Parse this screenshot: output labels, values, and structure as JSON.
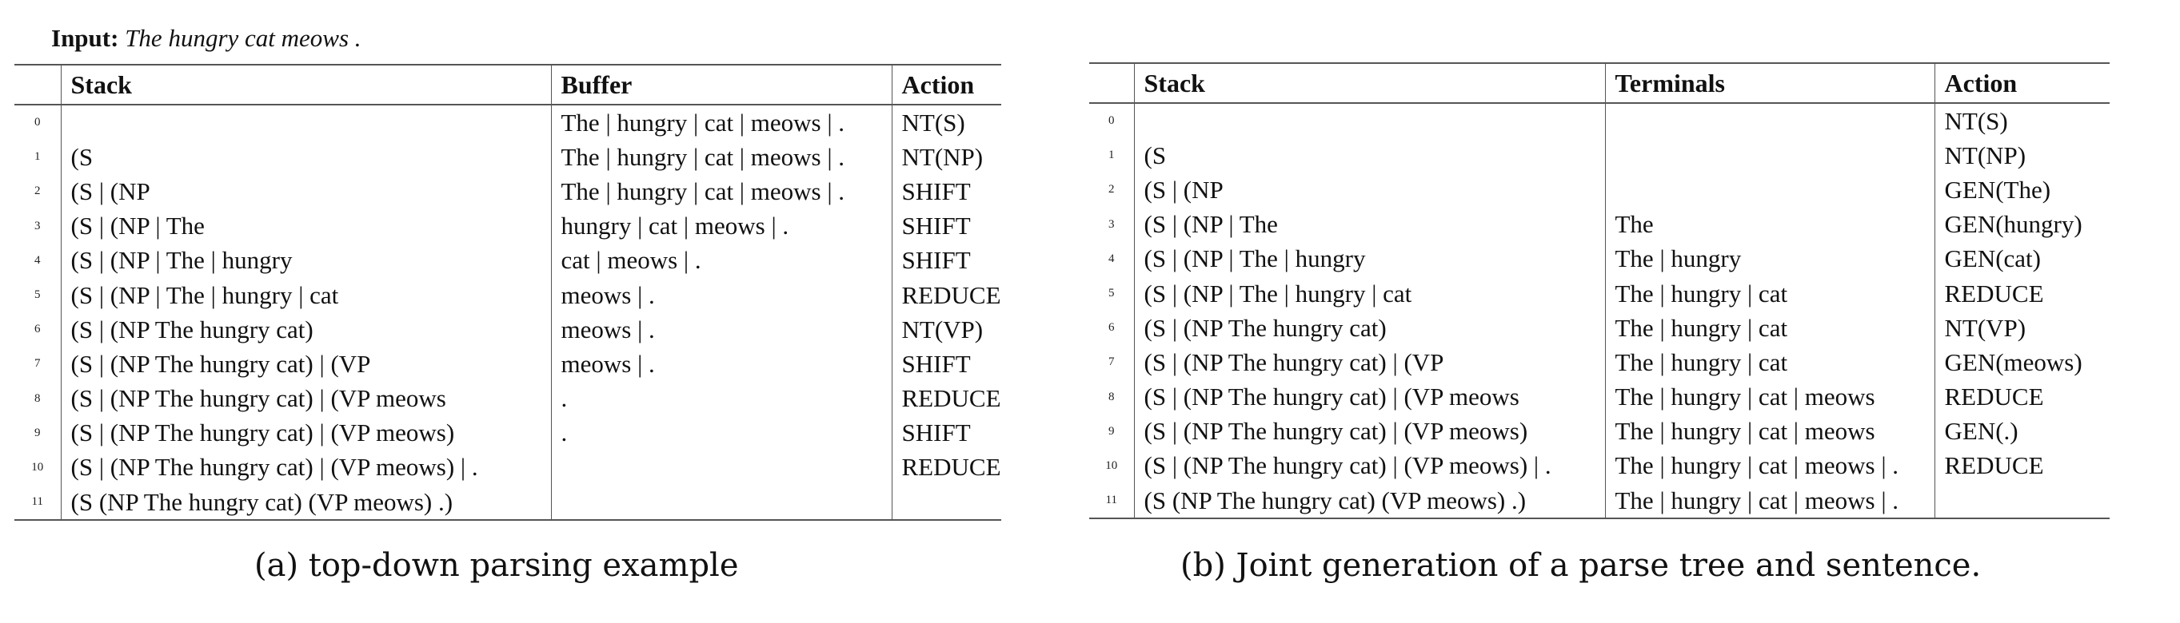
{
  "input_line": {
    "label": "Input:",
    "sentence": "The hungry cat meows ."
  },
  "table_a": {
    "headers": [
      "",
      "Stack",
      "Buffer",
      "Action"
    ],
    "rows": [
      {
        "num": "0",
        "stack": "",
        "buffer": "The | hungry | cat | meows | .",
        "action": "NT(S)"
      },
      {
        "num": "1",
        "stack": "(S",
        "buffer": "The | hungry | cat | meows | .",
        "action": "NT(NP)"
      },
      {
        "num": "2",
        "stack": "(S | (NP",
        "buffer": "The | hungry | cat | meows | .",
        "action": "SHIFT"
      },
      {
        "num": "3",
        "stack": "(S | (NP | The",
        "buffer": "hungry | cat | meows | .",
        "action": "SHIFT"
      },
      {
        "num": "4",
        "stack": "(S | (NP | The | hungry",
        "buffer": "cat | meows | .",
        "action": "SHIFT"
      },
      {
        "num": "5",
        "stack": "(S | (NP | The | hungry | cat",
        "buffer": "meows | .",
        "action": "REDUCE"
      },
      {
        "num": "6",
        "stack": "(S | (NP The hungry cat)",
        "buffer": "meows | .",
        "action": "NT(VP)"
      },
      {
        "num": "7",
        "stack": "(S | (NP The hungry cat) | (VP",
        "buffer": "meows | .",
        "action": "SHIFT"
      },
      {
        "num": "8",
        "stack": "(S | (NP The hungry cat) | (VP meows",
        "buffer": ".",
        "action": "REDUCE"
      },
      {
        "num": "9",
        "stack": "(S | (NP The hungry cat) | (VP meows)",
        "buffer": ".",
        "action": "SHIFT"
      },
      {
        "num": "10",
        "stack": "(S | (NP The hungry cat) | (VP meows) | .",
        "buffer": "",
        "action": "REDUCE"
      },
      {
        "num": "11",
        "stack": "(S (NP The hungry cat) (VP meows) .)",
        "buffer": "",
        "action": ""
      }
    ]
  },
  "table_b": {
    "headers": [
      "",
      "Stack",
      "Terminals",
      "Action"
    ],
    "rows": [
      {
        "num": "0",
        "stack": "",
        "terminals": "",
        "action": "NT(S)"
      },
      {
        "num": "1",
        "stack": "(S",
        "terminals": "",
        "action": "NT(NP)"
      },
      {
        "num": "2",
        "stack": "(S | (NP",
        "terminals": "",
        "action": "GEN(The)"
      },
      {
        "num": "3",
        "stack": "(S | (NP | The",
        "terminals": "The",
        "action": "GEN(hungry)"
      },
      {
        "num": "4",
        "stack": "(S | (NP | The | hungry",
        "terminals": "The | hungry",
        "action": "GEN(cat)"
      },
      {
        "num": "5",
        "stack": "(S | (NP | The | hungry | cat",
        "terminals": "The | hungry | cat",
        "action": "REDUCE"
      },
      {
        "num": "6",
        "stack": "(S | (NP The hungry cat)",
        "terminals": "The | hungry | cat",
        "action": "NT(VP)"
      },
      {
        "num": "7",
        "stack": "(S | (NP The hungry cat) | (VP",
        "terminals": "The | hungry | cat",
        "action": "GEN(meows)"
      },
      {
        "num": "8",
        "stack": "(S | (NP The hungry cat) | (VP meows",
        "terminals": "The | hungry | cat | meows",
        "action": "REDUCE"
      },
      {
        "num": "9",
        "stack": "(S | (NP The hungry cat) | (VP meows)",
        "terminals": "The | hungry | cat | meows",
        "action": "GEN(.)"
      },
      {
        "num": "10",
        "stack": "(S | (NP The hungry cat) | (VP meows) | .",
        "terminals": "The | hungry | cat | meows | .",
        "action": "REDUCE"
      },
      {
        "num": "11",
        "stack": "(S (NP The hungry cat) (VP meows) .)",
        "terminals": "The | hungry | cat | meows | .",
        "action": ""
      }
    ]
  },
  "captions": {
    "a": "(a) top-down parsing example",
    "b": "(b) Joint generation of a parse tree and sentence."
  }
}
